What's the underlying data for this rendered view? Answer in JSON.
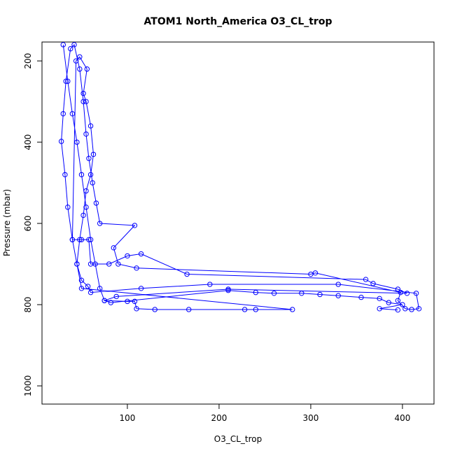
{
  "chart_data": {
    "type": "scatter-line",
    "title": "ATOM1 North_America O3_CL_trop",
    "xlabel": "O3_CL_trop",
    "ylabel": "Pressure (mbar)",
    "color": "#0000ff",
    "x": [
      30,
      35,
      40,
      45,
      50,
      55,
      60,
      65,
      70,
      75,
      100,
      108,
      110,
      130,
      167,
      228,
      240,
      280,
      50,
      45,
      40,
      35,
      32,
      28,
      30,
      33,
      38,
      42,
      48,
      52,
      55,
      58,
      62,
      66,
      70,
      108,
      85,
      90,
      110,
      300,
      305,
      398,
      395,
      403,
      410,
      418,
      415,
      330,
      190,
      115,
      60,
      57,
      50,
      45,
      48,
      52,
      55,
      60,
      63,
      60,
      55,
      52,
      56,
      48,
      44,
      40,
      50,
      58,
      60,
      80,
      100,
      115,
      165,
      360,
      368,
      395,
      405,
      210,
      88,
      75,
      82,
      210,
      240,
      260,
      290,
      310,
      330,
      355,
      375,
      385,
      400,
      375,
      395
    ],
    "values": [
      160,
      250,
      330,
      400,
      480,
      560,
      640,
      700,
      760,
      790,
      792,
      792,
      810,
      812,
      812,
      812,
      812,
      812,
      760,
      700,
      640,
      560,
      480,
      398,
      330,
      250,
      170,
      160,
      220,
      300,
      380,
      440,
      500,
      550,
      600,
      605,
      660,
      700,
      710,
      725,
      722,
      770,
      790,
      810,
      812,
      810,
      772,
      750,
      750,
      760,
      770,
      755,
      740,
      700,
      640,
      580,
      520,
      480,
      430,
      360,
      300,
      280,
      220,
      190,
      200,
      640,
      640,
      640,
      700,
      700,
      680,
      675,
      725,
      738,
      748,
      762,
      772,
      762,
      780,
      790,
      795,
      765,
      770,
      772,
      772,
      775,
      778,
      782,
      785,
      795,
      800,
      810,
      813
    ],
    "xlim": [
      6.9,
      434.4
    ],
    "ylim": [
      1044.8,
      153.4
    ],
    "xticks": [
      100,
      200,
      300,
      400
    ],
    "yticks": [
      200,
      400,
      600,
      800,
      1000
    ]
  }
}
